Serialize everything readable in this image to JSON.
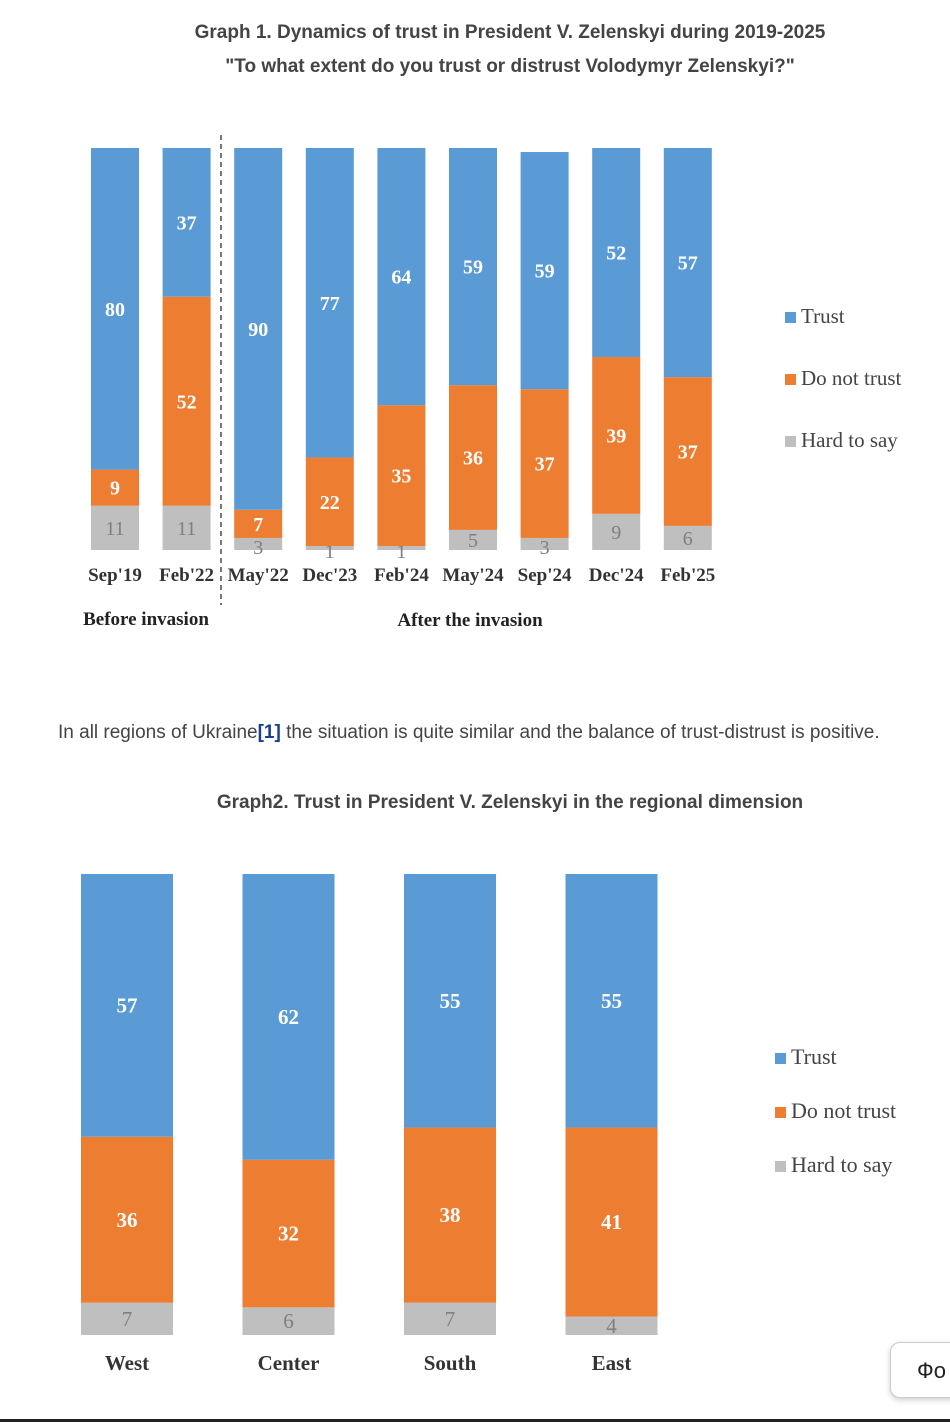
{
  "graph1": {
    "title_line1": "Graph 1. Dynamics of trust in President V. Zelenskyi during 2019-2025",
    "title_line2": "\"To what extent do you trust or distrust Volodymyr Zelenskyi?\"",
    "group_before": "Before invasion",
    "group_after": "After the invasion"
  },
  "paragraph": {
    "before": "In all regions of Ukraine",
    "ref": "[1]",
    "after": " the situation is quite similar and the balance of trust-distrust is positive."
  },
  "graph2": {
    "title": "Graph2. Trust in President V. Zelenskyi in the regional dimension"
  },
  "fo_button": "Фо",
  "colors": {
    "trust": "#5b9bd5",
    "do_not_trust": "#ed7d31",
    "hard_to_say": "#bfbfbf"
  },
  "chart_data": [
    {
      "type": "bar",
      "stacked": true,
      "categories": [
        "Sep'19",
        "Feb'22",
        "May'22",
        "Dec'23",
        "Feb'24",
        "May'24",
        "Sep'24",
        "Dec'24",
        "Feb'25"
      ],
      "series": [
        {
          "name": "Hard to say",
          "values": [
            11,
            11,
            3,
            1,
            1,
            5,
            3,
            9,
            6
          ]
        },
        {
          "name": "Do not trust",
          "values": [
            9,
            52,
            7,
            22,
            35,
            36,
            37,
            39,
            37
          ]
        },
        {
          "name": "Trust",
          "values": [
            80,
            37,
            90,
            77,
            64,
            59,
            59,
            52,
            57
          ]
        }
      ],
      "legend": [
        "Trust",
        "Do not trust",
        "Hard to say"
      ],
      "legend_position": "right"
    },
    {
      "type": "bar",
      "stacked": true,
      "categories": [
        "West",
        "Center",
        "South",
        "East"
      ],
      "series": [
        {
          "name": "Hard to say",
          "values": [
            7,
            6,
            7,
            4
          ]
        },
        {
          "name": "Do not trust",
          "values": [
            36,
            32,
            38,
            41
          ]
        },
        {
          "name": "Trust",
          "values": [
            57,
            62,
            55,
            55
          ]
        }
      ],
      "legend": [
        "Trust",
        "Do not trust",
        "Hard to say"
      ],
      "legend_position": "right"
    }
  ]
}
